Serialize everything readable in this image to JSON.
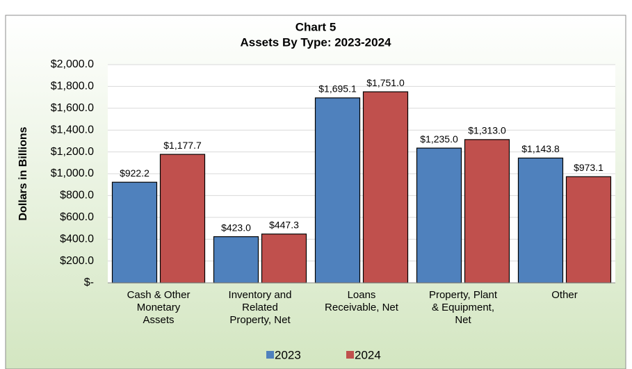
{
  "chart_data": {
    "type": "bar",
    "title": "Chart 5",
    "subtitle": "Assets By Type: 2023-2024",
    "ylabel": "Dollars in Billions",
    "categories": [
      [
        "Cash & Other",
        "Monetary",
        "Assets"
      ],
      [
        "Inventory and",
        "Related",
        "Property, Net"
      ],
      [
        "Loans",
        "Receivable, Net"
      ],
      [
        "Property, Plant",
        "& Equipment,",
        "Net"
      ],
      [
        "Other"
      ]
    ],
    "series": [
      {
        "name": "2023",
        "color": "#4f81bd",
        "values": [
          922.2,
          423.0,
          1695.1,
          1235.0,
          1143.8
        ],
        "value_labels": [
          "$922.2",
          "$423.0",
          "$1,695.1",
          "$1,235.0",
          "$1,143.8"
        ]
      },
      {
        "name": "2024",
        "color": "#c0504d",
        "values": [
          1177.7,
          447.3,
          1751.0,
          1313.0,
          973.1
        ],
        "value_labels": [
          "$1,177.7",
          "$447.3",
          "$1,751.0",
          "$1,313.0",
          "$973.1"
        ]
      }
    ],
    "ylim": [
      0,
      2000
    ],
    "yticks": [
      {
        "value": 0,
        "label": "$-"
      },
      {
        "value": 200,
        "label": "$200.0"
      },
      {
        "value": 400,
        "label": "$400.0"
      },
      {
        "value": 600,
        "label": "$600.0"
      },
      {
        "value": 800,
        "label": "$800.0"
      },
      {
        "value": 1000,
        "label": "$1,000.0"
      },
      {
        "value": 1200,
        "label": "$1,200.0"
      },
      {
        "value": 1400,
        "label": "$1,400.0"
      },
      {
        "value": 1600,
        "label": "$1,600.0"
      },
      {
        "value": 1800,
        "label": "$1,800.0"
      },
      {
        "value": 2000,
        "label": "$2,000.0"
      }
    ],
    "grid": true,
    "legend": "bottom"
  }
}
